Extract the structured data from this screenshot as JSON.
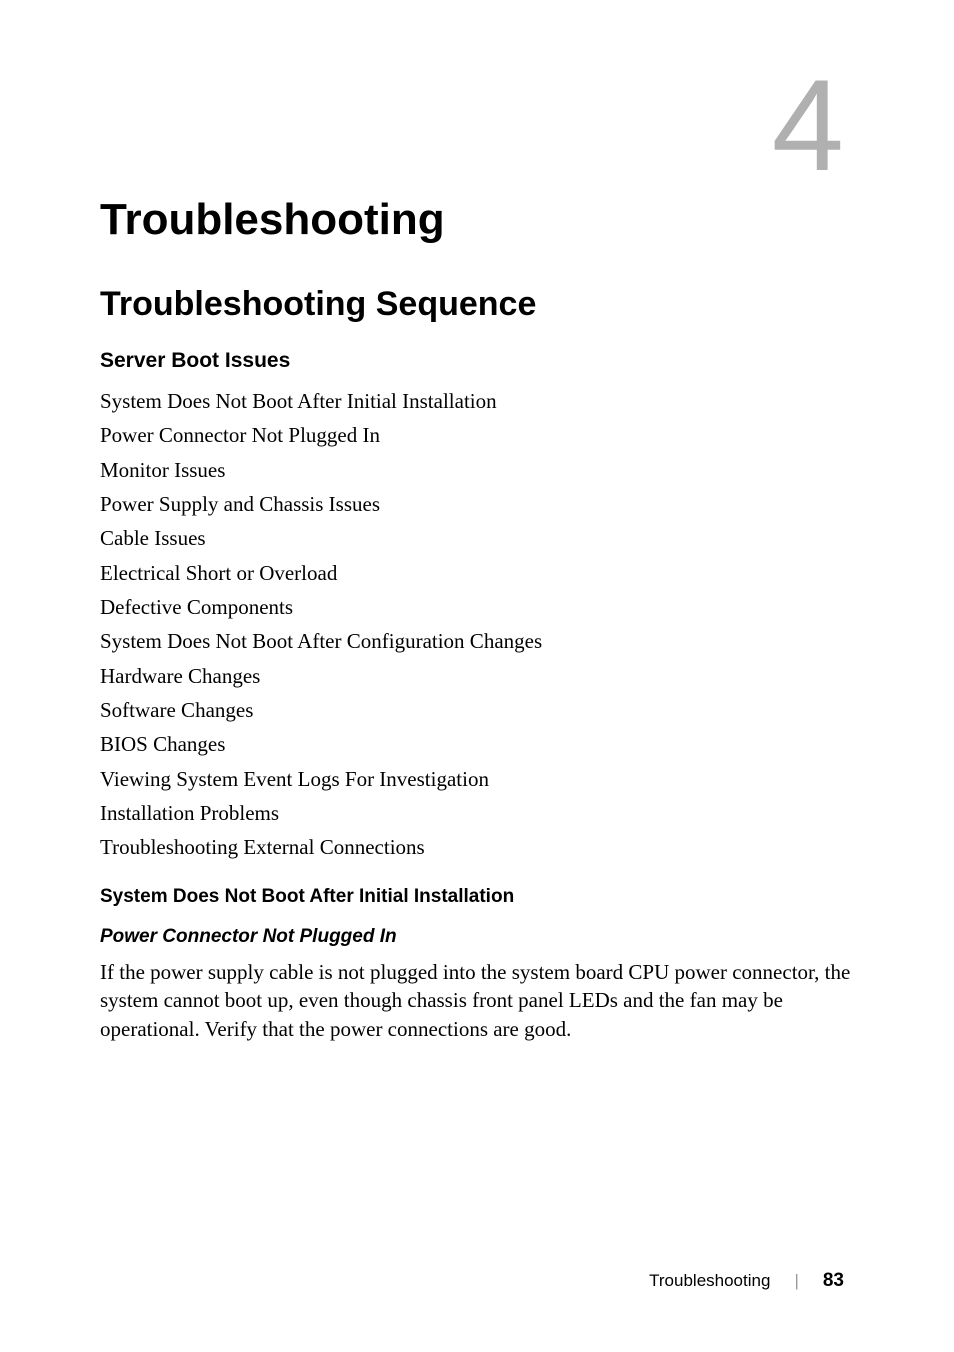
{
  "chapter": {
    "number": "4",
    "number_color": "#b0b0b0",
    "number_fontsize": 130,
    "title": "Troubleshooting",
    "title_fontsize": 44
  },
  "section": {
    "title": "Troubleshooting Sequence",
    "title_fontsize": 34
  },
  "subsection": {
    "title": "Server Boot Issues",
    "title_fontsize": 21
  },
  "issue_list": [
    "System Does Not Boot After Initial Installation",
    "Power Connector Not Plugged In",
    "Monitor Issues",
    "Power Supply and Chassis Issues",
    "Cable Issues",
    "Electrical Short or Overload",
    "Defective Components",
    "System Does Not Boot After Configuration Changes",
    "Hardware Changes",
    "Software Changes",
    "BIOS Changes",
    "Viewing System Event Logs For Investigation",
    "Installation Problems",
    "Troubleshooting External Connections"
  ],
  "detail": {
    "heading": "System Does Not Boot After Initial Installation",
    "item_title": "Power Connector Not Plugged In",
    "paragraph": "If the power supply cable is not plugged into the system board CPU power connector, the system cannot boot up, even though chassis front panel LEDs and the fan may be operational. Verify that the power connections are good."
  },
  "footer": {
    "label": "Troubleshooting",
    "divider": "|",
    "page_number": "83"
  },
  "typography": {
    "body_font": "Georgia, Times New Roman, serif",
    "heading_font": "Arial, Helvetica, sans-serif",
    "body_fontsize": 21,
    "text_color": "#000000",
    "background_color": "#ffffff"
  }
}
